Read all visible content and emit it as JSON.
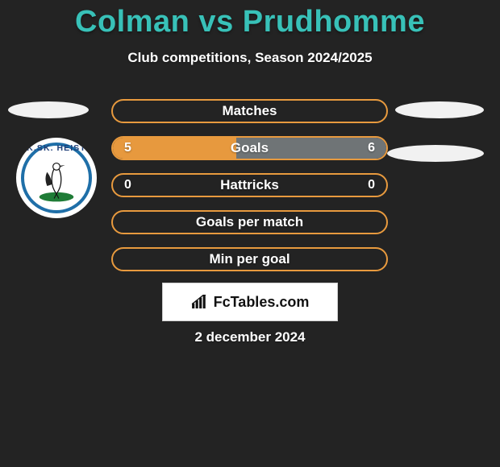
{
  "title_text": "Colman vs Prudhomme",
  "subtitle_text": "Club competitions, Season 2024/2025",
  "date_text": "2 december 2024",
  "footer": {
    "brand": "FcTables.com"
  },
  "colors": {
    "background": "#232323",
    "title_color": "#38c1b8",
    "text_color": "#ffffff",
    "ellipse_color": "#f1f1f1",
    "row_border": "#e89a3e",
    "row_fill_left": "#e7993e",
    "row_fill_right": "#6f7476",
    "row_label": "#ffffff",
    "row_value": "#ffffff",
    "crest_ring": "#1f6fa8",
    "crest_text": "#1f3f78",
    "crest_green": "#1f7c37"
  },
  "crest": {
    "top_text": "K.SK. HEIST"
  },
  "rows": [
    {
      "label": "Matches",
      "left": "",
      "right": "",
      "left_pct": 0,
      "right_pct": 0
    },
    {
      "label": "Goals",
      "left": "5",
      "right": "6",
      "left_pct": 45,
      "right_pct": 55
    },
    {
      "label": "Hattricks",
      "left": "0",
      "right": "0",
      "left_pct": 0,
      "right_pct": 0
    },
    {
      "label": "Goals per match",
      "left": "",
      "right": "",
      "left_pct": 0,
      "right_pct": 0
    },
    {
      "label": "Min per goal",
      "left": "",
      "right": "",
      "left_pct": 0,
      "right_pct": 0
    }
  ],
  "typography": {
    "title_fontsize": 38,
    "subtitle_fontsize": 17,
    "row_label_fontsize": 17,
    "row_value_fontsize": 16,
    "date_fontsize": 17,
    "footer_fontsize": 18
  }
}
